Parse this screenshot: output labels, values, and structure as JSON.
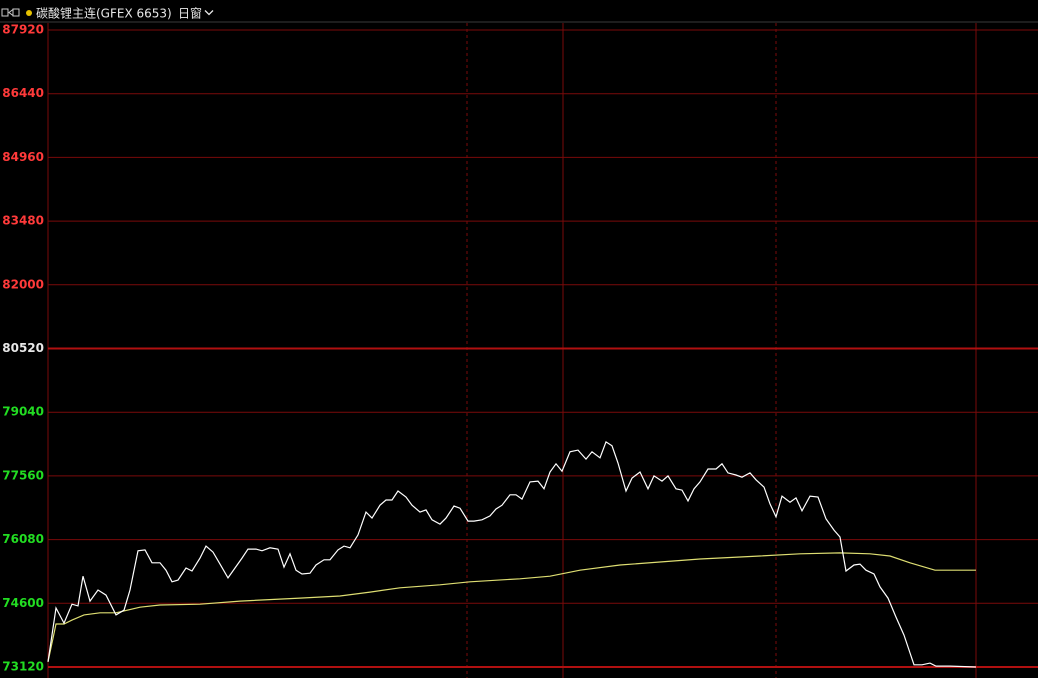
{
  "header": {
    "title": "碳酸锂主连(GFEX 6653)",
    "window": "日窗"
  },
  "chart_data": {
    "type": "line",
    "xlim": [
      0,
      928
    ],
    "ylim": [
      73120,
      87920
    ],
    "yticks": [
      73120,
      74600,
      76080,
      77560,
      79040,
      80520,
      82000,
      83480,
      84960,
      86440,
      87920
    ],
    "grid": true,
    "series": [
      {
        "color": "#ffffff",
        "x": [
          0,
          8,
          16,
          24,
          30,
          35,
          42,
          50,
          58,
          68,
          76,
          82,
          90,
          97,
          104,
          112,
          118,
          124,
          130,
          138,
          144,
          152,
          158,
          165,
          172,
          180,
          187,
          194,
          200,
          208,
          214,
          222,
          230,
          236,
          242,
          248,
          254,
          262,
          268,
          276,
          282,
          290,
          296,
          302,
          310,
          318,
          324,
          332,
          338,
          344,
          350,
          358,
          364,
          372,
          378,
          384,
          392,
          398,
          406,
          412,
          420,
          426,
          434,
          442,
          448,
          454,
          462,
          468,
          474,
          482,
          490,
          496,
          502,
          508,
          514,
          522,
          530,
          538,
          544,
          552,
          558,
          564,
          570,
          578,
          584,
          592,
          600,
          606,
          614,
          620,
          628,
          634,
          640,
          646,
          652,
          660,
          668,
          674,
          680,
          688,
          694,
          702,
          708,
          716,
          722,
          728,
          734,
          742,
          748,
          754,
          762,
          770,
          778,
          786,
          792,
          798,
          806,
          812,
          818,
          826,
          832,
          840,
          848,
          856,
          866,
          874,
          882,
          888,
          902,
          928
        ],
        "values": [
          73240,
          74490,
          74140,
          74580,
          74540,
          75230,
          74650,
          74910,
          74790,
          74330,
          74440,
          74910,
          75820,
          75840,
          75540,
          75540,
          75370,
          75100,
          75140,
          75420,
          75350,
          75650,
          75930,
          75790,
          75510,
          75190,
          75420,
          75650,
          75860,
          75860,
          75820,
          75890,
          75860,
          75440,
          75750,
          75370,
          75280,
          75300,
          75490,
          75610,
          75610,
          75840,
          75930,
          75890,
          76190,
          76720,
          76580,
          76880,
          77000,
          77000,
          77210,
          77070,
          76880,
          76720,
          76770,
          76540,
          76440,
          76580,
          76860,
          76810,
          76510,
          76510,
          76540,
          76630,
          76790,
          76880,
          77120,
          77120,
          77020,
          77420,
          77440,
          77260,
          77650,
          77840,
          77670,
          78120,
          78160,
          77950,
          78120,
          77980,
          78350,
          78260,
          77860,
          77210,
          77510,
          77650,
          77260,
          77560,
          77440,
          77560,
          77260,
          77230,
          76980,
          77260,
          77420,
          77720,
          77720,
          77840,
          77630,
          77580,
          77530,
          77630,
          77470,
          77300,
          76910,
          76610,
          77090,
          76950,
          77050,
          76750,
          77090,
          77070,
          76560,
          76300,
          76140,
          75350,
          75490,
          75510,
          75370,
          75280,
          74980,
          74720,
          74280,
          73860,
          73170,
          73170,
          73210,
          73140,
          73140,
          73120
        ]
      },
      {
        "color": "#dede72",
        "x": [
          0,
          8,
          16,
          24,
          36,
          52,
          68,
          92,
          112,
          152,
          192,
          252,
          292,
          322,
          352,
          392,
          422,
          472,
          502,
          532,
          572,
          652,
          712,
          752,
          792,
          822,
          842,
          862,
          887,
          928
        ],
        "values": [
          73240,
          74120,
          74120,
          74210,
          74330,
          74380,
          74380,
          74510,
          74560,
          74580,
          74650,
          74720,
          74770,
          74860,
          74960,
          75030,
          75100,
          75170,
          75230,
          75370,
          75490,
          75630,
          75700,
          75750,
          75770,
          75750,
          75700,
          75540,
          75370,
          75370
        ]
      }
    ]
  }
}
